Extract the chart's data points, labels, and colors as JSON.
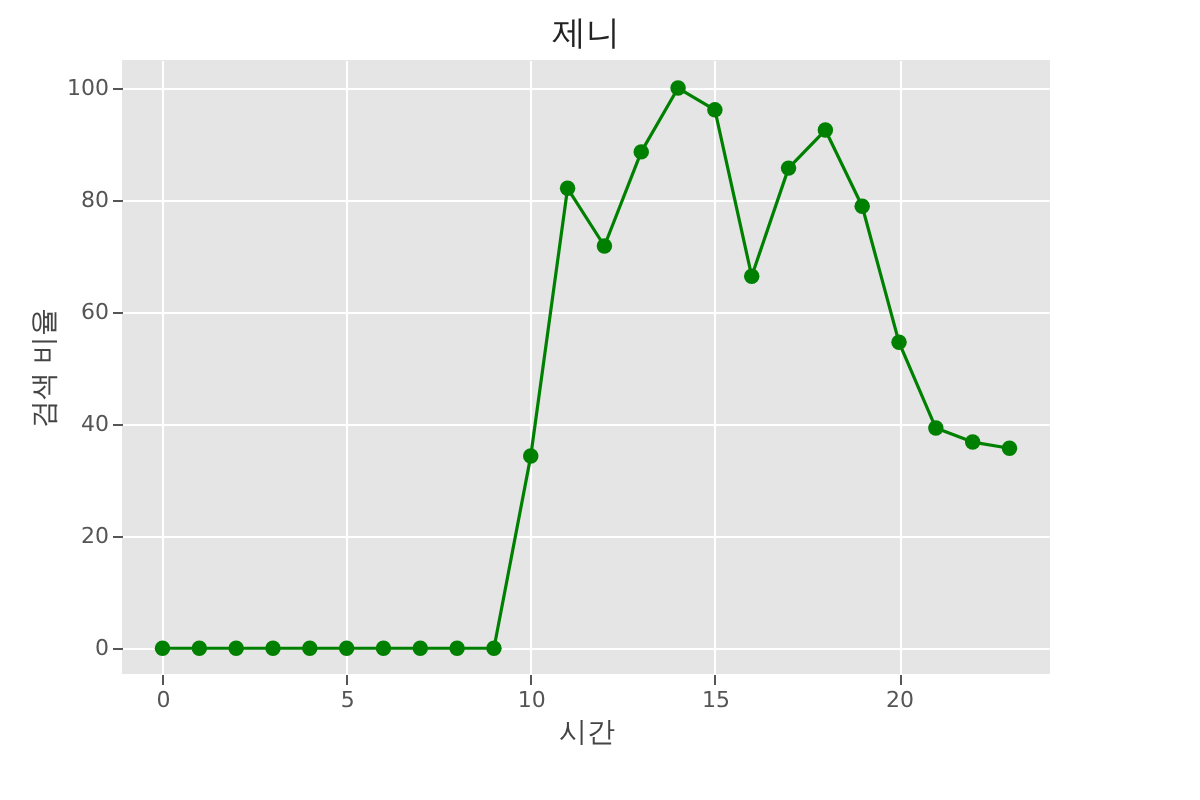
{
  "chart_data": {
    "type": "line",
    "title": "제니",
    "xlabel": "시간",
    "ylabel": "검색 비율",
    "x": [
      0,
      1,
      2,
      3,
      4,
      5,
      6,
      7,
      8,
      9,
      10,
      11,
      12,
      13,
      14,
      15,
      16,
      17,
      18,
      19,
      20,
      21,
      22,
      23
    ],
    "series": [
      {
        "color": "#008000",
        "values": [
          0,
          0,
          0,
          0,
          0,
          0,
          0,
          0,
          0,
          0,
          34.3,
          82.1,
          71.8,
          88.6,
          100,
          96.1,
          66.4,
          85.7,
          92.5,
          78.9,
          54.6,
          39.3,
          36.8,
          35.7
        ]
      }
    ],
    "xlim": [
      -1.1,
      24.1
    ],
    "xticks": [
      0,
      5,
      10,
      15,
      20
    ],
    "ylim": [
      -4.6,
      105
    ],
    "yticks": [
      0,
      20,
      40,
      60,
      80,
      100
    ],
    "grid": true,
    "marker": "circle",
    "line_style": "solid"
  }
}
